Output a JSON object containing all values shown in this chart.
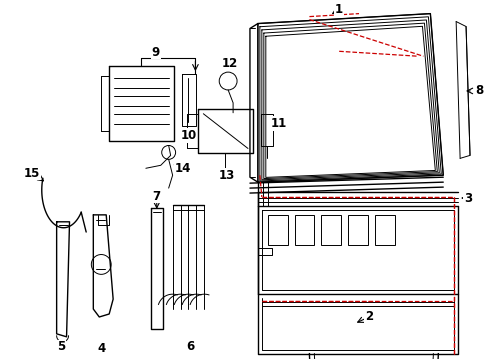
{
  "bg_color": "#ffffff",
  "line_color": "#000000",
  "red_color": "#cc0000",
  "label_fontsize": 8.5,
  "figsize": [
    4.89,
    3.6
  ],
  "dpi": 100
}
